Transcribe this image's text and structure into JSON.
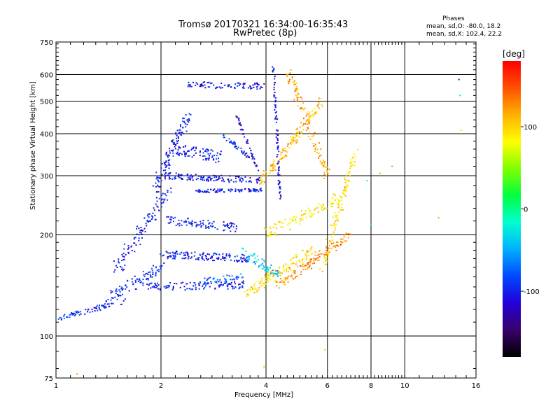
{
  "chart_data": {
    "type": "scatter",
    "title": "Tromsø 20170321 16:34:00-16:35:43",
    "subtitle": "RwPretec (8p)",
    "xlabel": "Frequency [MHz]",
    "ylabel": "Stationary phase Virtual Height [km]",
    "x_scale": "log",
    "y_scale": "log",
    "xlim": [
      1,
      16
    ],
    "ylim": [
      75,
      750
    ],
    "x_ticks": [
      "1",
      "2",
      "4",
      "6",
      "8",
      "10",
      "16"
    ],
    "x_tick_values": [
      1,
      2,
      4,
      6,
      8,
      10,
      16
    ],
    "x_grid_values": [
      2,
      4,
      6,
      8,
      10
    ],
    "y_ticks": [
      "75",
      "100",
      "200",
      "300",
      "400",
      "500",
      "600",
      "750"
    ],
    "y_tick_values": [
      75,
      100,
      200,
      300,
      400,
      500,
      600,
      750
    ],
    "y_grid_values": [
      100,
      200,
      300,
      400,
      500,
      600
    ],
    "grid": true,
    "colorbar": {
      "label": "[deg]",
      "range": [
        -180,
        180
      ],
      "ticks": [
        "100",
        "0",
        "-100"
      ],
      "tick_values": [
        100,
        0,
        -100
      ],
      "colormap": [
        "#000000",
        "#3a006a",
        "#2200d8",
        "#0048ff",
        "#00b0ff",
        "#00ffd0",
        "#00ff40",
        "#80ff00",
        "#ffff00",
        "#ffb000",
        "#ff5000",
        "#ff0000"
      ]
    },
    "phase_stats": {
      "title": "Phases",
      "o_line": "mean, sd,O: -80.0, 18.2",
      "x_line": "mean, sd,X: 102.4, 22.2"
    },
    "traces": [
      {
        "f_start": 1.0,
        "f_end": 1.6,
        "h_start": 112,
        "h_end": 128,
        "phase": -95,
        "spread": 0.025,
        "n": 70
      },
      {
        "f_start": 1.4,
        "f_end": 2.0,
        "h_start": 128,
        "h_end": 160,
        "phase": -95,
        "spread": 0.05,
        "n": 90
      },
      {
        "f_start": 1.5,
        "f_end": 2.1,
        "h_start": 160,
        "h_end": 270,
        "phase": -100,
        "spread": 0.06,
        "n": 110
      },
      {
        "f_start": 1.9,
        "f_end": 2.4,
        "h_start": 270,
        "h_end": 450,
        "phase": -100,
        "spread": 0.05,
        "n": 110
      },
      {
        "f_start": 2.0,
        "f_end": 3.6,
        "h_start": 175,
        "h_end": 170,
        "phase": -100,
        "spread": 0.035,
        "n": 140
      },
      {
        "f_start": 1.8,
        "f_end": 3.5,
        "h_start": 140,
        "h_end": 142,
        "phase": -100,
        "spread": 0.035,
        "n": 120
      },
      {
        "f_start": 2.1,
        "f_end": 3.3,
        "h_start": 220,
        "h_end": 210,
        "phase": -100,
        "spread": 0.04,
        "n": 90
      },
      {
        "f_start": 2.0,
        "f_end": 3.9,
        "h_start": 300,
        "h_end": 290,
        "phase": -105,
        "spread": 0.03,
        "n": 130
      },
      {
        "f_start": 2.5,
        "f_end": 3.9,
        "h_start": 270,
        "h_end": 272,
        "phase": -105,
        "spread": 0.015,
        "n": 90
      },
      {
        "f_start": 2.2,
        "f_end": 3.0,
        "h_start": 360,
        "h_end": 340,
        "phase": -100,
        "spread": 0.05,
        "n": 80
      },
      {
        "f_start": 2.4,
        "f_end": 3.9,
        "h_start": 560,
        "h_end": 555,
        "phase": -105,
        "spread": 0.03,
        "n": 80
      },
      {
        "f_start": 3.0,
        "f_end": 3.6,
        "h_start": 395,
        "h_end": 340,
        "phase": -95,
        "spread": 0.02,
        "n": 40
      },
      {
        "f_start": 3.3,
        "f_end": 3.8,
        "h_start": 450,
        "h_end": 310,
        "phase": -115,
        "spread": 0.015,
        "n": 45
      },
      {
        "f_start": 4.2,
        "f_end": 4.4,
        "h_start": 640,
        "h_end": 250,
        "phase": -110,
        "spread": 0.015,
        "n": 90
      },
      {
        "f_start": 3.9,
        "f_end": 5.8,
        "h_start": 290,
        "h_end": 500,
        "phase": 110,
        "spread": 0.04,
        "n": 140
      },
      {
        "f_start": 4.6,
        "f_end": 6.0,
        "h_start": 620,
        "h_end": 300,
        "phase": 120,
        "spread": 0.04,
        "n": 110
      },
      {
        "f_start": 3.5,
        "f_end": 5.5,
        "h_start": 135,
        "h_end": 180,
        "phase": 100,
        "spread": 0.05,
        "n": 130
      },
      {
        "f_start": 4.3,
        "f_end": 7.0,
        "h_start": 140,
        "h_end": 200,
        "phase": 130,
        "spread": 0.04,
        "n": 120
      },
      {
        "f_start": 5.8,
        "f_end": 7.2,
        "h_start": 160,
        "h_end": 350,
        "phase": 95,
        "spread": 0.04,
        "n": 110
      },
      {
        "f_start": 3.4,
        "f_end": 4.4,
        "h_start": 180,
        "h_end": 150,
        "phase": -40,
        "spread": 0.04,
        "n": 60
      },
      {
        "f_start": 4.0,
        "f_end": 6.5,
        "h_start": 200,
        "h_end": 260,
        "phase": 90,
        "spread": 0.05,
        "n": 100
      },
      {
        "f_start": 2.6,
        "f_end": 3.4,
        "h_start": 145,
        "h_end": 150,
        "phase": -70,
        "spread": 0.03,
        "n": 40
      }
    ],
    "isolated_points": [
      {
        "f": 1.15,
        "h": 77,
        "phase": 130
      },
      {
        "f": 3.95,
        "h": 81,
        "phase": 110
      },
      {
        "f": 5.9,
        "h": 91,
        "phase": 110
      },
      {
        "f": 8.5,
        "h": 305,
        "phase": 120
      },
      {
        "f": 9.2,
        "h": 320,
        "phase": 130
      },
      {
        "f": 12.5,
        "h": 225,
        "phase": 120
      },
      {
        "f": 14.3,
        "h": 580,
        "phase": -110
      },
      {
        "f": 14.4,
        "h": 520,
        "phase": 0
      },
      {
        "f": 14.5,
        "h": 410,
        "phase": 60
      },
      {
        "f": 8.0,
        "h": 215,
        "phase": 20
      },
      {
        "f": 7.8,
        "h": 290,
        "phase": 0
      }
    ]
  }
}
